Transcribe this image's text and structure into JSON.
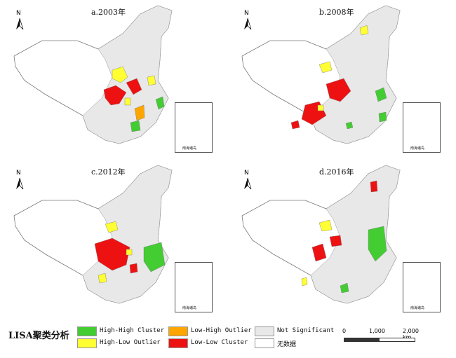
{
  "panels": [
    {
      "title": "a.2003年"
    },
    {
      "title": "b.2008年"
    },
    {
      "title": "c.2012年"
    },
    {
      "title": "d.2016年"
    }
  ],
  "north_label": "N",
  "inset_label": "南海诸岛",
  "legend": {
    "title": "LISA聚类分析",
    "items": [
      {
        "label": "High-High Cluster",
        "color": "#44cc33"
      },
      {
        "label": "High-Low Outlier",
        "color": "#ffff33"
      },
      {
        "label": "Low-High Outlier",
        "color": "#ffa500"
      },
      {
        "label": "Low-Low Cluster",
        "color": "#ee1111"
      },
      {
        "label": "Not Significant",
        "color": "#e8e8e8"
      },
      {
        "label": "无数据",
        "color": "#ffffff"
      }
    ]
  },
  "scale": {
    "ticks": [
      "0",
      "1,000",
      "2,000 km"
    ]
  }
}
